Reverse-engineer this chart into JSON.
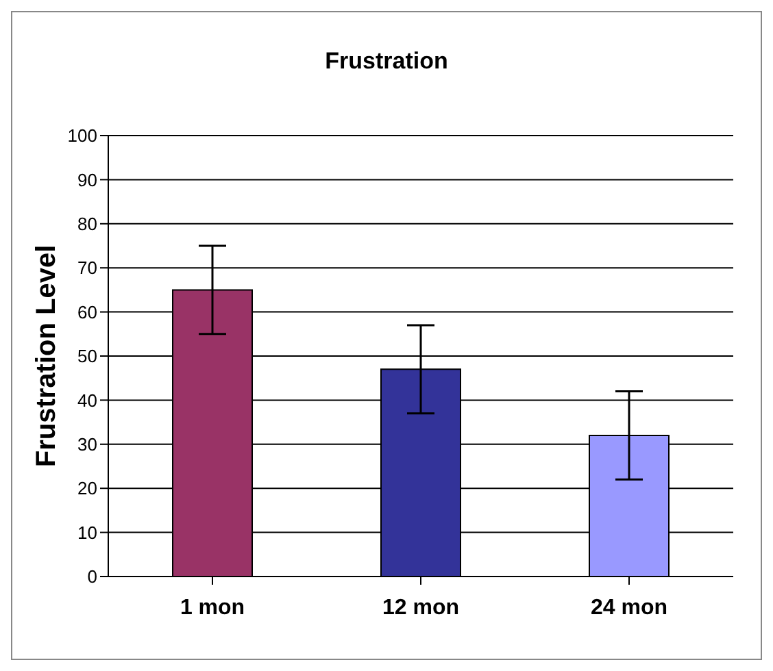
{
  "chart_data": {
    "type": "bar",
    "title": "Frustration",
    "ylabel": "Frustration Level",
    "categories": [
      "1 mon",
      "12 mon",
      "24 mon"
    ],
    "values": [
      65,
      47,
      32
    ],
    "colors": [
      "#993366",
      "#333399",
      "#9999ff"
    ],
    "errors": [
      10,
      10,
      10
    ],
    "ylim": [
      0,
      100
    ],
    "yticks": [
      0,
      10,
      20,
      30,
      40,
      50,
      60,
      70,
      80,
      90,
      100
    ],
    "grid": "y"
  }
}
